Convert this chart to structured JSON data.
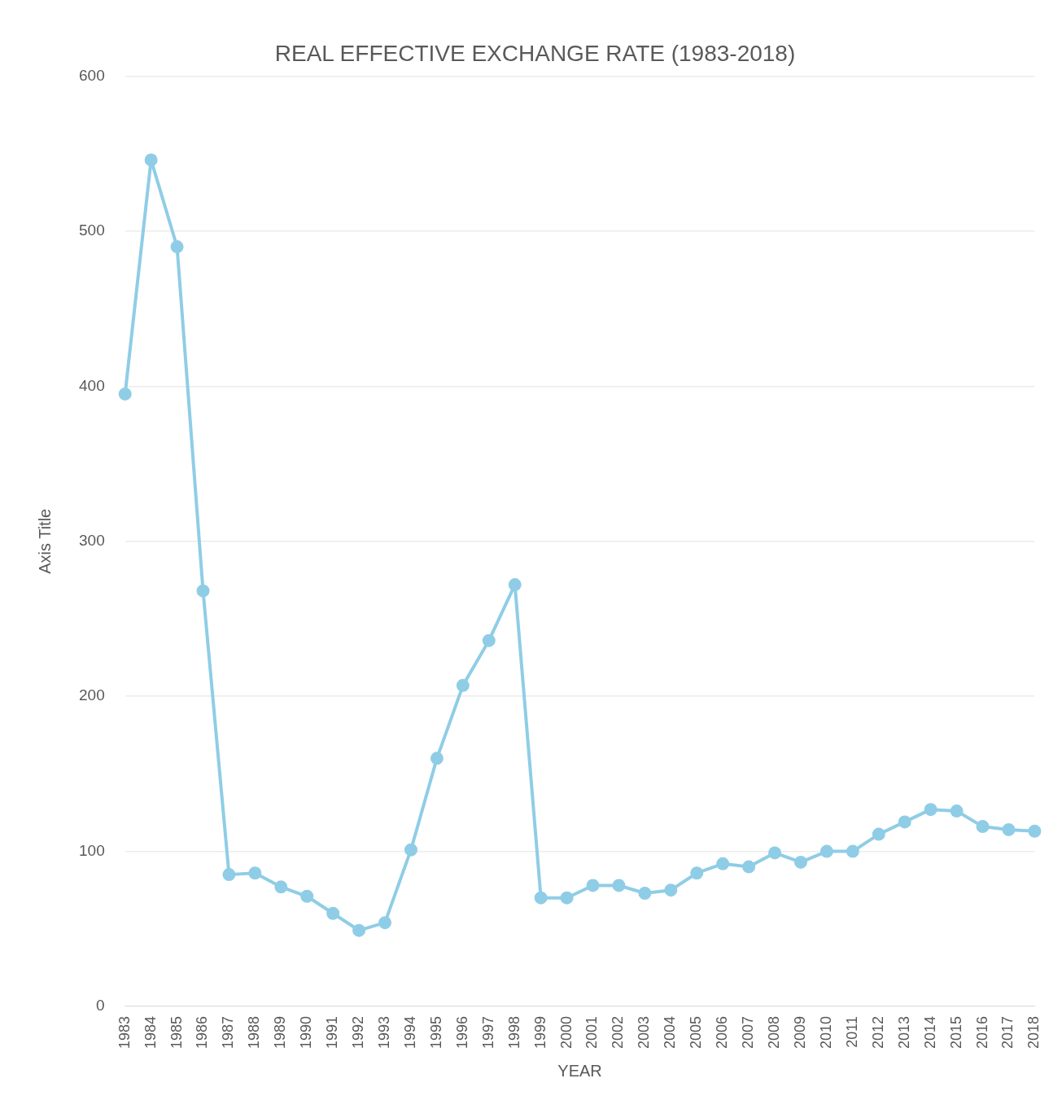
{
  "chart_data": {
    "type": "line",
    "title": "REAL EFFECTIVE EXCHANGE RATE (1983-2018)",
    "xlabel": "YEAR",
    "ylabel": "Axis Title",
    "categories": [
      "1983",
      "1984",
      "1985",
      "1986",
      "1987",
      "1988",
      "1989",
      "1990",
      "1991",
      "1992",
      "1993",
      "1994",
      "1995",
      "1996",
      "1997",
      "1998",
      "1999",
      "2000",
      "2001",
      "2002",
      "2003",
      "2004",
      "2005",
      "2006",
      "2007",
      "2008",
      "2009",
      "2010",
      "2011",
      "2012",
      "2013",
      "2014",
      "2015",
      "2016",
      "2017",
      "2018"
    ],
    "series": [
      {
        "color": "#8fcde6",
        "values": [
          395,
          546,
          490,
          268,
          85,
          86,
          77,
          71,
          60,
          49,
          54,
          101,
          160,
          207,
          236,
          272,
          70,
          70,
          78,
          78,
          73,
          75,
          86,
          92,
          90,
          99,
          93,
          100,
          100,
          111,
          119,
          127,
          126,
          116,
          114,
          113
        ]
      }
    ],
    "ylim": [
      0,
      600
    ],
    "yticks": [
      0,
      100,
      200,
      300,
      400,
      500,
      600
    ],
    "grid": "y",
    "legend": false,
    "marker": "circle",
    "line_style": "solid"
  }
}
